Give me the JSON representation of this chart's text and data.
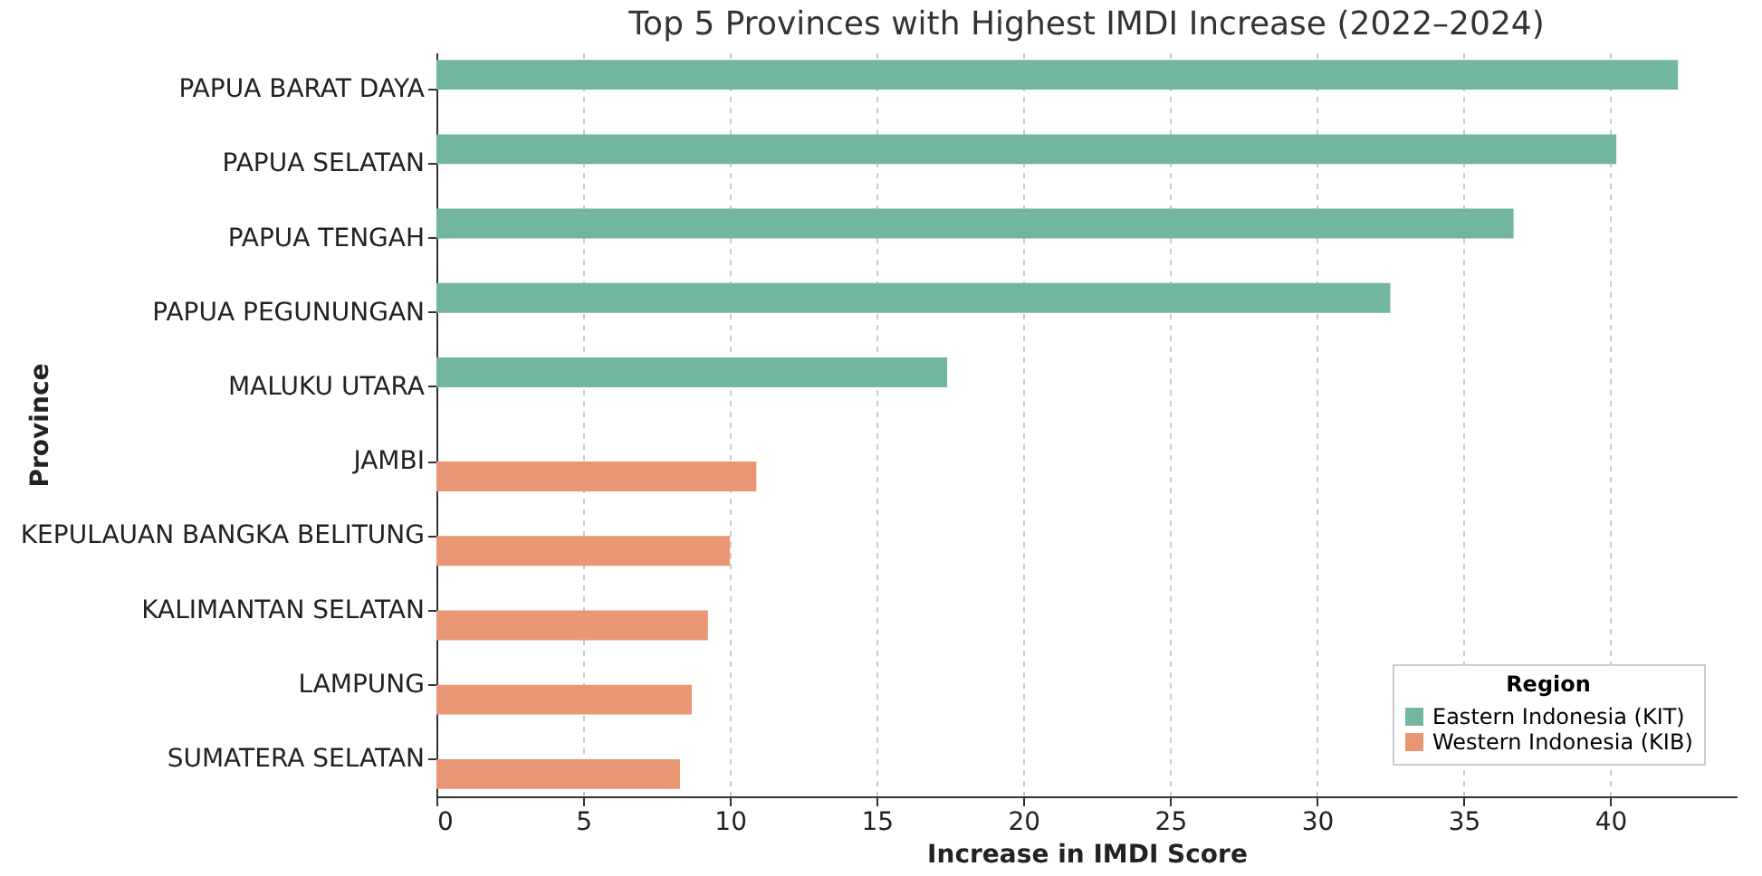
{
  "chart_data": {
    "type": "bar",
    "orientation": "horizontal",
    "title": "Top 5 Provinces with Highest IMDI Increase (2022–2024)",
    "xlabel": "Increase in IMDI Score",
    "ylabel": "Province",
    "legend_title": "Region",
    "categories": [
      "PAPUA BARAT DAYA",
      "PAPUA SELATAN",
      "PAPUA TENGAH",
      "PAPUA PEGUNUNGAN",
      "MALUKU UTARA",
      "JAMBI",
      "KEPULAUAN BANGKA BELITUNG",
      "KALIMANTAN SELATAN",
      "LAMPUNG",
      "SUMATERA SELATAN"
    ],
    "series": [
      {
        "name": "Eastern Indonesia (KIT)",
        "color": "#72b6a1",
        "values": [
          42.3,
          40.2,
          36.7,
          32.5,
          17.4,
          null,
          null,
          null,
          null,
          null
        ]
      },
      {
        "name": "Western Indonesia (KIB)",
        "color": "#e99675",
        "values": [
          null,
          null,
          null,
          null,
          null,
          10.9,
          10.0,
          9.25,
          8.7,
          8.3
        ]
      }
    ],
    "xlim": [
      0,
      44.3
    ],
    "xticks": [
      0,
      5,
      10,
      15,
      20,
      25,
      30,
      35,
      40
    ],
    "grid": "x",
    "legend": "bottom right"
  }
}
